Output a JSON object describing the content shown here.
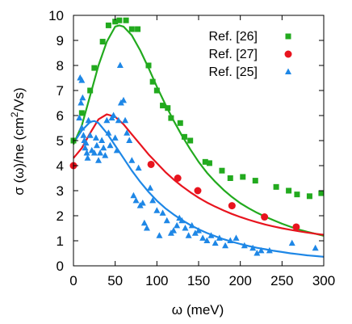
{
  "chart_data": {
    "type": "scatter",
    "xlabel_main": "ω",
    "xlabel_unit": "(meV)",
    "ylabel_main": "σ (ω)/ne (cm",
    "ylabel_sup": "2",
    "ylabel_tail": "/Vs)",
    "xlim": [
      0,
      300
    ],
    "ylim": [
      0,
      10
    ],
    "x_ticks": [
      0,
      50,
      100,
      150,
      200,
      250,
      300
    ],
    "y_ticks": [
      0,
      1,
      2,
      3,
      4,
      5,
      6,
      7,
      8,
      9,
      10
    ],
    "grid": false,
    "legend_position": "top-right",
    "series": [
      {
        "name": "Ref. [26]",
        "marker": "square",
        "color": "#22aa1e",
        "points": [
          [
            0,
            5.0
          ],
          [
            10,
            6.1
          ],
          [
            20,
            7.0
          ],
          [
            25,
            7.9
          ],
          [
            35,
            8.95
          ],
          [
            42,
            9.6
          ],
          [
            50,
            9.75
          ],
          [
            55,
            9.8
          ],
          [
            63,
            9.8
          ],
          [
            70,
            9.45
          ],
          [
            77,
            9.45
          ],
          [
            90,
            8.0
          ],
          [
            95,
            7.35
          ],
          [
            100,
            7.0
          ],
          [
            107,
            6.4
          ],
          [
            113,
            6.3
          ],
          [
            117,
            5.9
          ],
          [
            128,
            5.7
          ],
          [
            133,
            5.15
          ],
          [
            140,
            5.0
          ],
          [
            158,
            4.15
          ],
          [
            163,
            4.1
          ],
          [
            178,
            3.8
          ],
          [
            188,
            3.5
          ],
          [
            203,
            3.55
          ],
          [
            218,
            3.4
          ],
          [
            243,
            3.15
          ],
          [
            258,
            3.0
          ],
          [
            268,
            2.85
          ],
          [
            283,
            2.78
          ],
          [
            297,
            2.9
          ]
        ],
        "fit": [
          [
            0,
            4.85
          ],
          [
            10,
            5.6
          ],
          [
            20,
            6.8
          ],
          [
            30,
            8.0
          ],
          [
            40,
            8.95
          ],
          [
            50,
            9.55
          ],
          [
            55,
            9.6
          ],
          [
            60,
            9.55
          ],
          [
            70,
            9.2
          ],
          [
            80,
            8.6
          ],
          [
            90,
            7.9
          ],
          [
            100,
            7.15
          ],
          [
            110,
            6.45
          ],
          [
            120,
            5.8
          ],
          [
            130,
            5.2
          ],
          [
            140,
            4.65
          ],
          [
            150,
            4.15
          ],
          [
            160,
            3.72
          ],
          [
            170,
            3.35
          ],
          [
            180,
            3.03
          ],
          [
            190,
            2.75
          ],
          [
            200,
            2.5
          ],
          [
            210,
            2.3
          ],
          [
            220,
            2.12
          ],
          [
            230,
            1.96
          ],
          [
            240,
            1.82
          ],
          [
            250,
            1.68
          ],
          [
            260,
            1.56
          ],
          [
            270,
            1.45
          ],
          [
            280,
            1.36
          ],
          [
            290,
            1.28
          ],
          [
            300,
            1.2
          ]
        ]
      },
      {
        "name": "Ref. [27]",
        "marker": "circle",
        "color": "#e8141e",
        "points": [
          [
            0,
            4.0
          ],
          [
            93,
            4.05
          ],
          [
            125,
            3.5
          ],
          [
            149,
            3.0
          ],
          [
            190,
            2.4
          ],
          [
            229,
            1.95
          ],
          [
            267,
            1.55
          ]
        ],
        "fit": [
          [
            0,
            4.3
          ],
          [
            10,
            4.7
          ],
          [
            20,
            5.3
          ],
          [
            30,
            5.85
          ],
          [
            40,
            6.05
          ],
          [
            50,
            5.95
          ],
          [
            60,
            5.65
          ],
          [
            70,
            5.25
          ],
          [
            80,
            4.85
          ],
          [
            90,
            4.45
          ],
          [
            100,
            4.1
          ],
          [
            110,
            3.75
          ],
          [
            120,
            3.45
          ],
          [
            130,
            3.18
          ],
          [
            140,
            2.94
          ],
          [
            150,
            2.72
          ],
          [
            160,
            2.53
          ],
          [
            170,
            2.36
          ],
          [
            180,
            2.21
          ],
          [
            190,
            2.07
          ],
          [
            200,
            1.95
          ],
          [
            210,
            1.84
          ],
          [
            220,
            1.74
          ],
          [
            230,
            1.65
          ],
          [
            240,
            1.57
          ],
          [
            250,
            1.5
          ],
          [
            260,
            1.44
          ],
          [
            270,
            1.38
          ],
          [
            280,
            1.33
          ],
          [
            290,
            1.28
          ],
          [
            300,
            1.24
          ]
        ]
      },
      {
        "name": "Ref. [25]",
        "marker": "triangle",
        "color": "#1e87e6",
        "points": [
          [
            8,
            7.5
          ],
          [
            10,
            7.4
          ],
          [
            9,
            6.5
          ],
          [
            11,
            6.7
          ],
          [
            7,
            5.9
          ],
          [
            10,
            5.5
          ],
          [
            12,
            5.2
          ],
          [
            13,
            5.0
          ],
          [
            14,
            4.7
          ],
          [
            15,
            4.9
          ],
          [
            16,
            4.5
          ],
          [
            17,
            4.3
          ],
          [
            18,
            5.8
          ],
          [
            20,
            5.2
          ],
          [
            22,
            4.6
          ],
          [
            25,
            4.5
          ],
          [
            27,
            5.1
          ],
          [
            28,
            4.8
          ],
          [
            30,
            4.2
          ],
          [
            32,
            4.5
          ],
          [
            34,
            5.0
          ],
          [
            36,
            4.7
          ],
          [
            38,
            4.4
          ],
          [
            40,
            5.8
          ],
          [
            42,
            5.3
          ],
          [
            44,
            4.8
          ],
          [
            46,
            5.9
          ],
          [
            48,
            6.0
          ],
          [
            50,
            5.1
          ],
          [
            52,
            4.6
          ],
          [
            54,
            5.8
          ],
          [
            56,
            8.0
          ],
          [
            57,
            6.5
          ],
          [
            60,
            6.6
          ],
          [
            62,
            5.8
          ],
          [
            64,
            5.3
          ],
          [
            67,
            5.0
          ],
          [
            70,
            4.2
          ],
          [
            72,
            2.8
          ],
          [
            75,
            2.6
          ],
          [
            78,
            3.9
          ],
          [
            80,
            2.4
          ],
          [
            83,
            2.5
          ],
          [
            85,
            1.7
          ],
          [
            88,
            1.5
          ],
          [
            92,
            3.1
          ],
          [
            95,
            2.6
          ],
          [
            100,
            2.2
          ],
          [
            103,
            1.2
          ],
          [
            107,
            2.1
          ],
          [
            112,
            1.8
          ],
          [
            117,
            1.3
          ],
          [
            120,
            1.4
          ],
          [
            124,
            1.6
          ],
          [
            127,
            1.9
          ],
          [
            130,
            1.8
          ],
          [
            134,
            1.5
          ],
          [
            138,
            1.2
          ],
          [
            142,
            1.6
          ],
          [
            146,
            1.3
          ],
          [
            150,
            1.4
          ],
          [
            155,
            1.1
          ],
          [
            160,
            1.0
          ],
          [
            165,
            1.2
          ],
          [
            170,
            0.9
          ],
          [
            175,
            1.1
          ],
          [
            182,
            0.8
          ],
          [
            188,
            1.0
          ],
          [
            195,
            1.1
          ],
          [
            205,
            0.8
          ],
          [
            215,
            0.7
          ],
          [
            220,
            0.5
          ],
          [
            225,
            0.6
          ],
          [
            235,
            0.6
          ],
          [
            262,
            0.9
          ],
          [
            290,
            0.7
          ]
        ],
        "fit": [
          [
            0,
            4.9
          ],
          [
            10,
            5.4
          ],
          [
            20,
            5.75
          ],
          [
            25,
            5.78
          ],
          [
            30,
            5.7
          ],
          [
            40,
            5.3
          ],
          [
            50,
            4.8
          ],
          [
            60,
            4.3
          ],
          [
            70,
            3.8
          ],
          [
            80,
            3.35
          ],
          [
            90,
            2.95
          ],
          [
            100,
            2.6
          ],
          [
            110,
            2.3
          ],
          [
            120,
            2.05
          ],
          [
            130,
            1.83
          ],
          [
            140,
            1.63
          ],
          [
            150,
            1.46
          ],
          [
            160,
            1.31
          ],
          [
            170,
            1.18
          ],
          [
            180,
            1.06
          ],
          [
            190,
            0.96
          ],
          [
            200,
            0.87
          ],
          [
            210,
            0.79
          ],
          [
            220,
            0.72
          ],
          [
            230,
            0.66
          ],
          [
            240,
            0.6
          ],
          [
            250,
            0.55
          ],
          [
            260,
            0.5
          ],
          [
            270,
            0.46
          ],
          [
            280,
            0.42
          ],
          [
            290,
            0.39
          ],
          [
            300,
            0.36
          ]
        ]
      }
    ]
  }
}
